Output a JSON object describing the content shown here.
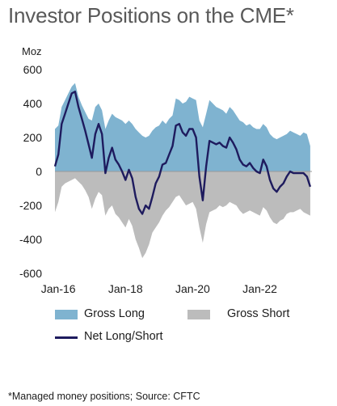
{
  "title": "Investor Positions on the CME*",
  "footnote": "*Managed money positions; Source: CFTC",
  "colors": {
    "gross_long": "#7fb3d0",
    "gross_short": "#bcbcbc",
    "net": "#1e1b5e"
  },
  "chart_data": {
    "type": "area",
    "title": "Investor Positions on the CME*",
    "ylabel": "Moz",
    "xlabel": "",
    "ylim": [
      -600,
      600
    ],
    "yticks": [
      600,
      400,
      200,
      0,
      -200,
      -400,
      -600
    ],
    "xticks": [
      "Jan-16",
      "Jan-18",
      "Jan-20",
      "Jan-22"
    ],
    "xlim": [
      2015.9,
      2023.55
    ],
    "grid": false,
    "legend": "bottom",
    "series": [
      {
        "name": "Gross Long",
        "type": "area",
        "x": [
          2015.9,
          2016.0,
          2016.1,
          2016.2,
          2016.3,
          2016.4,
          2016.5,
          2016.6,
          2016.7,
          2016.8,
          2016.9,
          2017.0,
          2017.1,
          2017.2,
          2017.3,
          2017.4,
          2017.5,
          2017.6,
          2017.7,
          2017.8,
          2017.9,
          2018.0,
          2018.1,
          2018.2,
          2018.3,
          2018.4,
          2018.5,
          2018.6,
          2018.7,
          2018.8,
          2018.9,
          2019.0,
          2019.1,
          2019.2,
          2019.3,
          2019.4,
          2019.5,
          2019.6,
          2019.7,
          2019.8,
          2019.9,
          2020.0,
          2020.1,
          2020.2,
          2020.3,
          2020.4,
          2020.5,
          2020.6,
          2020.7,
          2020.8,
          2020.9,
          2021.0,
          2021.1,
          2021.2,
          2021.3,
          2021.4,
          2021.5,
          2021.6,
          2021.7,
          2021.8,
          2021.9,
          2022.0,
          2022.1,
          2022.2,
          2022.3,
          2022.4,
          2022.5,
          2022.6,
          2022.7,
          2022.8,
          2022.9,
          2023.0,
          2023.1,
          2023.2,
          2023.3,
          2023.4,
          2023.5
        ],
        "values": [
          250,
          270,
          380,
          420,
          460,
          500,
          520,
          440,
          390,
          350,
          310,
          300,
          380,
          400,
          360,
          250,
          300,
          340,
          320,
          310,
          300,
          280,
          300,
          280,
          250,
          230,
          210,
          200,
          210,
          240,
          260,
          270,
          300,
          280,
          310,
          330,
          430,
          420,
          400,
          410,
          440,
          430,
          420,
          300,
          260,
          340,
          420,
          400,
          380,
          370,
          360,
          340,
          380,
          360,
          330,
          300,
          290,
          270,
          280,
          260,
          250,
          250,
          280,
          260,
          220,
          200,
          190,
          200,
          210,
          220,
          240,
          230,
          220,
          210,
          230,
          220,
          150
        ]
      },
      {
        "name": "Gross Short",
        "type": "area",
        "x": [
          2015.9,
          2016.0,
          2016.1,
          2016.2,
          2016.3,
          2016.4,
          2016.5,
          2016.6,
          2016.7,
          2016.8,
          2016.9,
          2017.0,
          2017.1,
          2017.2,
          2017.3,
          2017.4,
          2017.5,
          2017.6,
          2017.7,
          2017.8,
          2017.9,
          2018.0,
          2018.1,
          2018.2,
          2018.3,
          2018.4,
          2018.5,
          2018.6,
          2018.7,
          2018.8,
          2018.9,
          2019.0,
          2019.1,
          2019.2,
          2019.3,
          2019.4,
          2019.5,
          2019.6,
          2019.7,
          2019.8,
          2019.9,
          2020.0,
          2020.1,
          2020.2,
          2020.3,
          2020.4,
          2020.5,
          2020.6,
          2020.7,
          2020.8,
          2020.9,
          2021.0,
          2021.1,
          2021.2,
          2021.3,
          2021.4,
          2021.5,
          2021.6,
          2021.7,
          2021.8,
          2021.9,
          2022.0,
          2022.1,
          2022.2,
          2022.3,
          2022.4,
          2022.5,
          2022.6,
          2022.7,
          2022.8,
          2022.9,
          2023.0,
          2023.1,
          2023.2,
          2023.3,
          2023.4,
          2023.5
        ],
        "values": [
          -240,
          -180,
          -90,
          -70,
          -60,
          -50,
          -40,
          -60,
          -80,
          -110,
          -150,
          -220,
          -160,
          -120,
          -140,
          -260,
          -220,
          -200,
          -250,
          -270,
          -300,
          -330,
          -280,
          -320,
          -400,
          -450,
          -510,
          -480,
          -430,
          -360,
          -330,
          -300,
          -260,
          -230,
          -210,
          -180,
          -150,
          -140,
          -170,
          -200,
          -190,
          -180,
          -220,
          -330,
          -420,
          -310,
          -240,
          -230,
          -220,
          -200,
          -210,
          -200,
          -180,
          -190,
          -200,
          -230,
          -250,
          -240,
          -230,
          -240,
          -250,
          -260,
          -210,
          -230,
          -270,
          -300,
          -310,
          -290,
          -280,
          -250,
          -240,
          -240,
          -230,
          -220,
          -240,
          -250,
          -260
        ]
      },
      {
        "name": "Net Long/Short",
        "type": "line",
        "x": [
          2015.9,
          2016.0,
          2016.1,
          2016.2,
          2016.3,
          2016.4,
          2016.5,
          2016.6,
          2016.7,
          2016.8,
          2016.9,
          2017.0,
          2017.1,
          2017.2,
          2017.3,
          2017.4,
          2017.5,
          2017.6,
          2017.7,
          2017.8,
          2017.9,
          2018.0,
          2018.1,
          2018.2,
          2018.3,
          2018.4,
          2018.5,
          2018.6,
          2018.7,
          2018.8,
          2018.9,
          2019.0,
          2019.1,
          2019.2,
          2019.3,
          2019.4,
          2019.5,
          2019.6,
          2019.7,
          2019.8,
          2019.9,
          2020.0,
          2020.1,
          2020.2,
          2020.3,
          2020.4,
          2020.5,
          2020.6,
          2020.7,
          2020.8,
          2020.9,
          2021.0,
          2021.1,
          2021.2,
          2021.3,
          2021.4,
          2021.5,
          2021.6,
          2021.7,
          2021.8,
          2021.9,
          2022.0,
          2022.1,
          2022.2,
          2022.3,
          2022.4,
          2022.5,
          2022.6,
          2022.7,
          2022.8,
          2022.9,
          2023.0,
          2023.1,
          2023.2,
          2023.3,
          2023.4,
          2023.5
        ],
        "values": [
          30,
          100,
          280,
          340,
          400,
          460,
          470,
          380,
          310,
          240,
          160,
          80,
          220,
          280,
          220,
          -10,
          80,
          140,
          70,
          40,
          0,
          -50,
          10,
          -40,
          -150,
          -220,
          -250,
          -200,
          -220,
          -150,
          -70,
          -30,
          40,
          50,
          100,
          150,
          270,
          280,
          230,
          210,
          250,
          250,
          200,
          -30,
          -170,
          30,
          180,
          170,
          160,
          170,
          150,
          140,
          200,
          170,
          130,
          70,
          40,
          30,
          50,
          20,
          0,
          -10,
          70,
          30,
          -50,
          -100,
          -120,
          -90,
          -70,
          -30,
          0,
          -10,
          -10,
          -10,
          -10,
          -30,
          -90
        ]
      }
    ]
  },
  "legend_items": [
    {
      "label": "Gross Long"
    },
    {
      "label": "Gross Short"
    },
    {
      "label": "Net Long/Short"
    }
  ]
}
